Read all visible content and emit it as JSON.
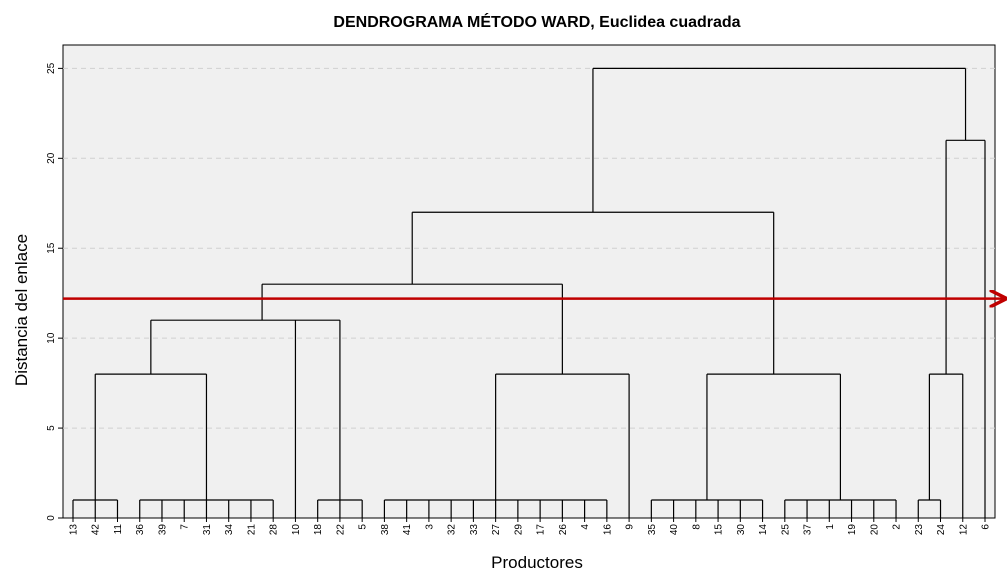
{
  "chart_data": {
    "type": "dendrogram",
    "title": "DENDROGRAMA MÉTODO WARD, Euclidea cuadrada",
    "x_label": "Productores",
    "y_label": "Distancia del enlace",
    "ylim": [
      0,
      26.3
    ],
    "yticks": [
      0,
      5,
      10,
      15,
      20,
      25
    ],
    "grid": true,
    "color": "#000000",
    "cut_line": {
      "value": 12.2,
      "color": "#c00000"
    },
    "tree": {
      "height": 25,
      "children": [
        {
          "height": 17,
          "children": [
            {
              "height": 13,
              "children": [
                {
                  "height": 11,
                  "children": [
                    {
                      "height": 8,
                      "children": [
                        {
                          "height": 1,
                          "children": [
                            "13",
                            "42",
                            "11"
                          ]
                        },
                        {
                          "height": 1,
                          "children": [
                            "36",
                            "39",
                            "7",
                            "31",
                            "34",
                            "21",
                            "28"
                          ]
                        }
                      ]
                    },
                    "10",
                    {
                      "height": 1,
                      "children": [
                        "18",
                        "22",
                        "5"
                      ]
                    }
                  ]
                },
                {
                  "height": 8,
                  "children": [
                    {
                      "height": 1,
                      "children": [
                        "38",
                        "41",
                        "3",
                        "32",
                        "33",
                        "27",
                        "29",
                        "17",
                        "26",
                        "4",
                        "16"
                      ]
                    },
                    "9"
                  ]
                }
              ]
            },
            {
              "height": 8,
              "children": [
                {
                  "height": 1,
                  "children": [
                    "35",
                    "40",
                    "8",
                    "15",
                    "30",
                    "14"
                  ]
                },
                {
                  "height": 1,
                  "children": [
                    "25",
                    "37",
                    "1",
                    "19",
                    "20",
                    "2"
                  ]
                }
              ]
            }
          ]
        },
        {
          "height": 21,
          "children": [
            {
              "height": 8,
              "children": [
                {
                  "height": 1,
                  "children": [
                    "23",
                    "24"
                  ]
                },
                "12"
              ]
            },
            "6"
          ]
        }
      ]
    }
  }
}
